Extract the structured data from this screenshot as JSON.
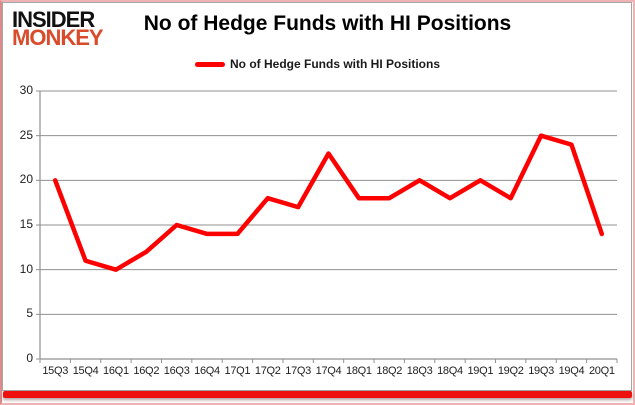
{
  "brand": {
    "line1": "INSIDER",
    "line2": "MONKEY"
  },
  "header": {
    "title": "No of Hedge Funds with HI Positions"
  },
  "legend": {
    "label": "No of Hedge Funds with HI Positions"
  },
  "chart_data": {
    "type": "line",
    "title": "No of Hedge Funds with HI Positions",
    "categories": [
      "15Q3",
      "15Q4",
      "16Q1",
      "16Q2",
      "16Q3",
      "16Q4",
      "17Q1",
      "17Q2",
      "17Q3",
      "17Q4",
      "18Q1",
      "18Q2",
      "18Q3",
      "18Q4",
      "19Q1",
      "19Q2",
      "19Q3",
      "19Q4",
      "20Q1"
    ],
    "series": [
      {
        "name": "No of Hedge Funds with HI Positions",
        "color": "#ff0000",
        "values": [
          20,
          11,
          10,
          12,
          15,
          14,
          14,
          18,
          17,
          23,
          18,
          18,
          20,
          18,
          20,
          18,
          25,
          24,
          14
        ]
      }
    ],
    "xlabel": "",
    "ylabel": "",
    "ylim": [
      0,
      30
    ],
    "yticks": [
      0,
      5,
      10,
      15,
      20,
      25,
      30
    ],
    "grid": true,
    "legend_position": "top-center"
  },
  "colors": {
    "line_red": "#ff0000",
    "brand_red": "#d94b2b",
    "grid_gray": "#909090",
    "bottom_bar_red": "#ee0f0f",
    "text_dark": "#1f1f1f"
  }
}
